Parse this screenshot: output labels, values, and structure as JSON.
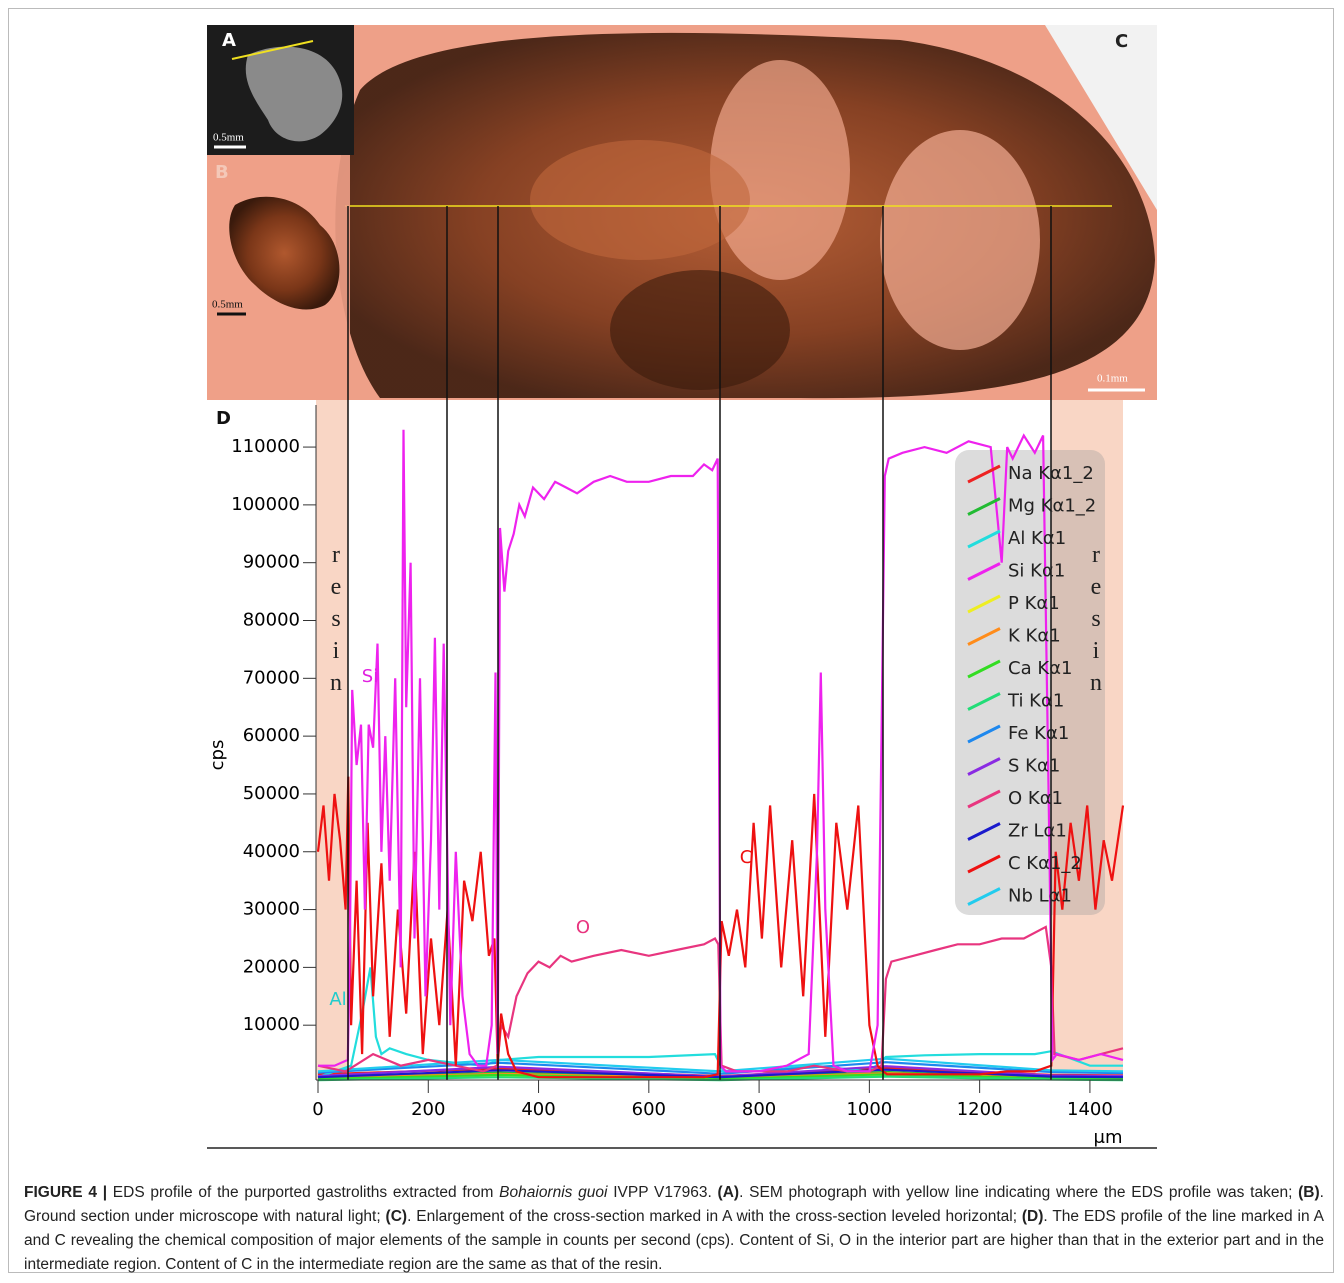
{
  "figure": {
    "panels": {
      "a": "A",
      "b": "B",
      "c": "C",
      "d": "D"
    },
    "scale_bars": {
      "a": "0.5mm",
      "b": "0.5mm",
      "c": "0.1mm"
    }
  },
  "chart_data": {
    "type": "line",
    "y_label": "cps",
    "x_label": "μm",
    "xlim": [
      0,
      1460
    ],
    "ylim": [
      0,
      117000
    ],
    "xticks": [
      0,
      200,
      400,
      600,
      800,
      1000,
      1200,
      1400
    ],
    "yticks": [
      10000,
      20000,
      30000,
      40000,
      50000,
      60000,
      70000,
      80000,
      90000,
      100000,
      110000
    ],
    "annotations": [
      {
        "text": "resin",
        "color": "#222222"
      },
      {
        "text": "resin",
        "color": "#222222"
      },
      {
        "text": "Si",
        "color": "#e020e0"
      },
      {
        "text": "O",
        "color": "#e8357f"
      },
      {
        "text": "C",
        "color": "#ee1111"
      },
      {
        "text": "Al",
        "color": "#22cccc"
      }
    ],
    "series": [
      {
        "name": "Na Kα1_2",
        "color": "#ee2222",
        "x": [
          0,
          330,
          730,
          1030,
          1330,
          1460
        ],
        "values": [
          1500,
          2500,
          1200,
          2600,
          1400,
          1300
        ]
      },
      {
        "name": "Mg Kα1_2",
        "color": "#22bb33",
        "x": [
          0,
          330,
          730,
          1030,
          1330,
          1460
        ],
        "values": [
          800,
          1800,
          900,
          1900,
          900,
          800
        ]
      },
      {
        "name": "Al Kα1",
        "color": "#22dddd",
        "x": [
          0,
          60,
          80,
          95,
          105,
          115,
          130,
          160,
          200,
          250,
          300,
          330,
          400,
          600,
          720,
          735,
          800,
          900,
          1000,
          1030,
          1100,
          1200,
          1300,
          1330,
          1400,
          1460
        ],
        "values": [
          1000,
          3000,
          12000,
          20000,
          8000,
          5000,
          6000,
          5000,
          4000,
          3500,
          3000,
          4000,
          4500,
          4500,
          5000,
          2000,
          2000,
          3000,
          2000,
          4500,
          4800,
          5000,
          5000,
          5500,
          3000,
          3000
        ]
      },
      {
        "name": "Si Kα1",
        "color": "#ee22ee",
        "x": [
          0,
          30,
          54,
          58,
          62,
          70,
          78,
          85,
          92,
          100,
          108,
          115,
          122,
          130,
          140,
          150,
          155,
          160,
          168,
          175,
          185,
          195,
          205,
          212,
          220,
          228,
          240,
          250,
          262,
          275,
          290,
          305,
          315,
          322,
          326,
          330,
          338,
          345,
          355,
          365,
          375,
          390,
          410,
          430,
          450,
          470,
          500,
          530,
          560,
          600,
          640,
          680,
          700,
          715,
          725,
          730,
          740,
          760,
          800,
          850,
          890,
          905,
          912,
          920,
          935,
          960,
          1000,
          1015,
          1022,
          1028,
          1035,
          1060,
          1100,
          1140,
          1180,
          1220,
          1240,
          1250,
          1260,
          1280,
          1300,
          1315,
          1325,
          1332,
          1340,
          1380,
          1420,
          1460
        ],
        "values": [
          3000,
          3000,
          4000,
          25000,
          68000,
          55000,
          62000,
          30000,
          62000,
          58000,
          76000,
          40000,
          60000,
          35000,
          70000,
          20000,
          113000,
          65000,
          90000,
          25000,
          70000,
          15000,
          42000,
          77000,
          30000,
          76000,
          10000,
          40000,
          15000,
          5000,
          3000,
          3000,
          10000,
          71000,
          5000,
          96000,
          85000,
          92000,
          95000,
          100000,
          98000,
          103000,
          101000,
          104000,
          103000,
          102000,
          104000,
          105000,
          104000,
          104000,
          105000,
          105000,
          107000,
          106000,
          108000,
          3000,
          2000,
          2000,
          2000,
          3000,
          5000,
          40000,
          71000,
          30000,
          3000,
          2000,
          2000,
          10000,
          60000,
          105000,
          108000,
          109000,
          110000,
          109000,
          111000,
          110000,
          90000,
          110000,
          108000,
          112000,
          109000,
          112000,
          50000,
          4000,
          5000,
          4000,
          5000,
          4000
        ]
      },
      {
        "name": "P Kα1",
        "color": "#eeee22",
        "x": [
          0,
          330,
          730,
          1030,
          1330,
          1460
        ],
        "values": [
          600,
          1200,
          600,
          1300,
          700,
          600
        ]
      },
      {
        "name": "K Kα1",
        "color": "#ff8c1a",
        "x": [
          0,
          330,
          730,
          1030,
          1330,
          1460
        ],
        "values": [
          900,
          1600,
          800,
          1700,
          900,
          900
        ]
      },
      {
        "name": "Ca Kα1",
        "color": "#33dd22",
        "x": [
          0,
          330,
          730,
          1030,
          1330,
          1460
        ],
        "values": [
          700,
          1400,
          700,
          1500,
          800,
          700
        ]
      },
      {
        "name": "Ti Kα1",
        "color": "#22dd77",
        "x": [
          0,
          330,
          730,
          1030,
          1330,
          1460
        ],
        "values": [
          500,
          1000,
          500,
          1100,
          600,
          500
        ]
      },
      {
        "name": "Fe Kα1",
        "color": "#1e88ee",
        "x": [
          0,
          330,
          730,
          1030,
          1330,
          1460
        ],
        "values": [
          1800,
          3500,
          1600,
          3600,
          1900,
          1700
        ]
      },
      {
        "name": "S Kα1",
        "color": "#8a2be2",
        "x": [
          0,
          330,
          730,
          1030,
          1330,
          1460
        ],
        "values": [
          1200,
          2800,
          1100,
          2900,
          1300,
          1200
        ]
      },
      {
        "name": "O Kα1",
        "color": "#e8357f",
        "x": [
          0,
          50,
          100,
          150,
          200,
          250,
          300,
          325,
          332,
          345,
          360,
          380,
          400,
          420,
          440,
          460,
          500,
          550,
          600,
          650,
          700,
          720,
          726,
          732,
          760,
          800,
          850,
          900,
          960,
          1000,
          1022,
          1030,
          1040,
          1080,
          1120,
          1160,
          1200,
          1240,
          1280,
          1320,
          1330,
          1336,
          1380,
          1420,
          1460
        ],
        "values": [
          3000,
          2000,
          5000,
          3000,
          4000,
          3000,
          2000,
          3000,
          10000,
          8000,
          15000,
          19000,
          21000,
          20000,
          22000,
          21000,
          22000,
          23000,
          22000,
          23000,
          24000,
          25000,
          24000,
          3000,
          2000,
          2000,
          2000,
          3000,
          2000,
          2000,
          3000,
          18000,
          21000,
          22000,
          23000,
          24000,
          24000,
          25000,
          25000,
          27000,
          20000,
          5000,
          4000,
          5000,
          6000
        ]
      },
      {
        "name": "Zr Lα1",
        "color": "#1a1acc",
        "x": [
          0,
          330,
          730,
          1030,
          1330,
          1460
        ],
        "values": [
          1000,
          2200,
          1000,
          2300,
          1100,
          1000
        ]
      },
      {
        "name": "C Kα1_2",
        "color": "#ee1111",
        "x": [
          0,
          10,
          20,
          30,
          40,
          50,
          55,
          60,
          70,
          80,
          90,
          100,
          115,
          130,
          145,
          160,
          175,
          190,
          205,
          220,
          235,
          250,
          265,
          280,
          295,
          310,
          320,
          326,
          332,
          345,
          360,
          400,
          500,
          600,
          700,
          725,
          732,
          745,
          760,
          775,
          790,
          805,
          820,
          840,
          860,
          880,
          900,
          920,
          940,
          960,
          980,
          1000,
          1015,
          1025,
          1032,
          1060,
          1100,
          1150,
          1200,
          1250,
          1300,
          1330,
          1338,
          1350,
          1365,
          1380,
          1395,
          1410,
          1425,
          1440,
          1460
        ],
        "values": [
          40000,
          48000,
          35000,
          50000,
          42000,
          30000,
          53000,
          10000,
          35000,
          5000,
          45000,
          15000,
          38000,
          8000,
          30000,
          12000,
          40000,
          5000,
          25000,
          10000,
          30000,
          3000,
          35000,
          28000,
          40000,
          22000,
          25000,
          3000,
          12000,
          5000,
          2000,
          1000,
          1000,
          1000,
          1000,
          1500,
          28000,
          22000,
          30000,
          20000,
          45000,
          25000,
          48000,
          20000,
          42000,
          15000,
          50000,
          8000,
          45000,
          30000,
          48000,
          10000,
          3000,
          2000,
          1500,
          1500,
          1500,
          1500,
          1500,
          2000,
          2000,
          3000,
          40000,
          30000,
          45000,
          35000,
          48000,
          30000,
          42000,
          35000,
          48000
        ]
      },
      {
        "name": "Nb Lα1",
        "color": "#22ccee",
        "x": [
          0,
          330,
          730,
          1030,
          1330,
          1460
        ],
        "values": [
          2000,
          4000,
          2000,
          4200,
          2200,
          2000
        ]
      }
    ]
  },
  "caption": {
    "parts": [
      "FIGURE 4 |",
      " EDS profile of the purported gastroliths extracted from ",
      "Bohaiornis guoi",
      " IVPP V17963. ",
      "(A)",
      ". SEM photograph with yellow line indicating where the EDS profile was taken; ",
      "(B)",
      ". Ground section under microscope with natural light; ",
      "(C)",
      ". Enlargement of the cross-section marked in A with the cross-section leveled horizontal; ",
      "(D)",
      ". The EDS profile of the line marked in A and C revealing the chemical composition of major elements of the sample in counts per second (cps). Content of Si, O in the interior part are higher than that in the exterior part and in the intermediate region. Content of C in the intermediate region are the same as that of the resin."
    ]
  }
}
